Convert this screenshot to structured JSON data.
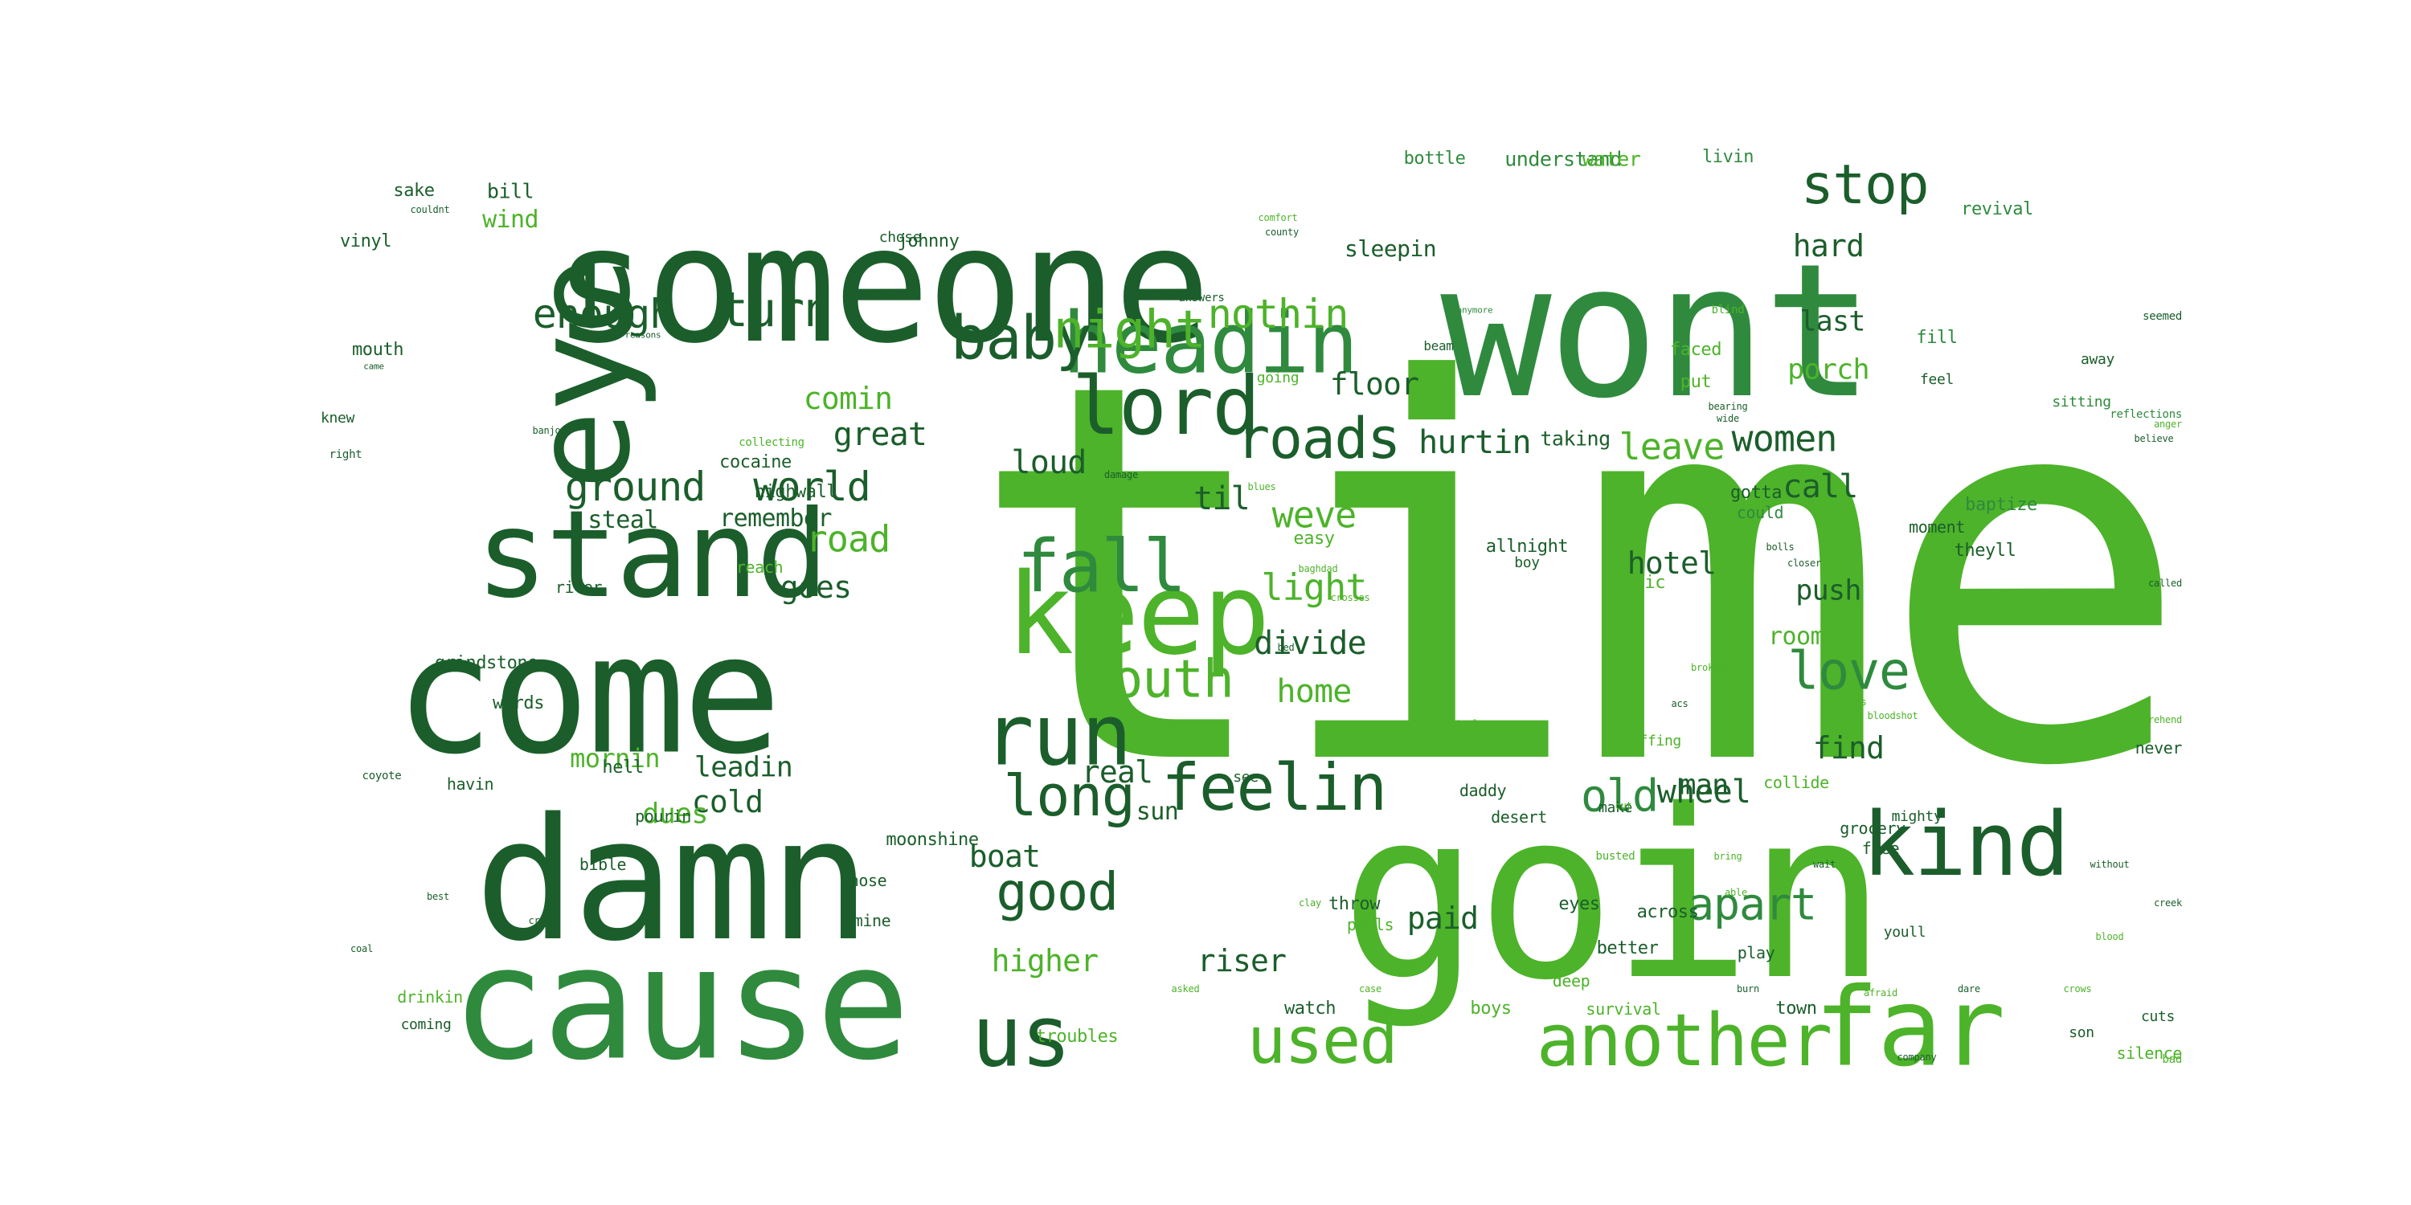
{
  "palette": {
    "dark": "#1b5e2b",
    "mid": "#2f8a3e",
    "light": "#4db32a",
    "pale": "#7fcc4a"
  },
  "words": [
    {
      "t": "time",
      "c": "light"
    },
    {
      "t": "someone",
      "c": "dark"
    },
    {
      "t": "wont",
      "c": "mid"
    },
    {
      "t": "goin",
      "c": "light"
    },
    {
      "t": "eye",
      "c": "dark"
    },
    {
      "t": "come",
      "c": "dark"
    },
    {
      "t": "damn",
      "c": "dark"
    },
    {
      "t": "cause",
      "c": "mid"
    },
    {
      "t": "stand",
      "c": "dark"
    },
    {
      "t": "headin",
      "c": "mid"
    },
    {
      "t": "keep",
      "c": "light"
    },
    {
      "t": "lord",
      "c": "dark"
    },
    {
      "t": "far",
      "c": "light"
    },
    {
      "t": "kind",
      "c": "dark"
    },
    {
      "t": "run",
      "c": "dark"
    },
    {
      "t": "another",
      "c": "light"
    },
    {
      "t": "us",
      "c": "dark"
    },
    {
      "t": "fall",
      "c": "mid"
    },
    {
      "t": "feelin",
      "c": "dark"
    },
    {
      "t": "used",
      "c": "light"
    },
    {
      "t": "roads",
      "c": "dark"
    },
    {
      "t": "baby",
      "c": "dark"
    },
    {
      "t": "night",
      "c": "light"
    },
    {
      "t": "south",
      "c": "light"
    },
    {
      "t": "long",
      "c": "dark"
    },
    {
      "t": "good",
      "c": "dark"
    },
    {
      "t": "love",
      "c": "mid"
    },
    {
      "t": "stop",
      "c": "dark"
    },
    {
      "t": "old",
      "c": "mid"
    },
    {
      "t": "apart",
      "c": "mid"
    },
    {
      "t": "turn",
      "c": "dark"
    },
    {
      "t": "enough",
      "c": "dark"
    },
    {
      "t": "ground",
      "c": "dark"
    },
    {
      "t": "world",
      "c": "dark"
    },
    {
      "t": "nothin",
      "c": "light"
    },
    {
      "t": "women",
      "c": "dark"
    },
    {
      "t": "weve",
      "c": "light"
    },
    {
      "t": "light",
      "c": "light"
    },
    {
      "t": "leave",
      "c": "light"
    },
    {
      "t": "hurtin",
      "c": "dark"
    },
    {
      "t": "wheel",
      "c": "dark"
    },
    {
      "t": "call",
      "c": "dark"
    },
    {
      "t": "divide",
      "c": "dark"
    },
    {
      "t": "home",
      "c": "light"
    },
    {
      "t": "road",
      "c": "light"
    },
    {
      "t": "great",
      "c": "dark"
    },
    {
      "t": "comin",
      "c": "light"
    },
    {
      "t": "floor",
      "c": "dark"
    },
    {
      "t": "loud",
      "c": "dark"
    },
    {
      "t": "til",
      "c": "dark"
    },
    {
      "t": "hotel",
      "c": "dark"
    },
    {
      "t": "porch",
      "c": "light"
    },
    {
      "t": "last",
      "c": "dark"
    },
    {
      "t": "hard",
      "c": "dark"
    },
    {
      "t": "push",
      "c": "dark"
    },
    {
      "t": "find",
      "c": "dark"
    },
    {
      "t": "boat",
      "c": "dark"
    },
    {
      "t": "higher",
      "c": "light"
    },
    {
      "t": "paid",
      "c": "dark"
    },
    {
      "t": "riser",
      "c": "dark"
    },
    {
      "t": "leadin",
      "c": "dark"
    },
    {
      "t": "cold",
      "c": "dark"
    },
    {
      "t": "dues",
      "c": "light"
    },
    {
      "t": "mornin",
      "c": "light"
    },
    {
      "t": "goes",
      "c": "dark"
    },
    {
      "t": "real",
      "c": "dark"
    },
    {
      "t": "man",
      "c": "dark"
    },
    {
      "t": "sun",
      "c": "dark"
    },
    {
      "t": "remember",
      "c": "dark"
    },
    {
      "t": "steal",
      "c": "dark"
    },
    {
      "t": "room",
      "c": "light"
    },
    {
      "t": "sleepin",
      "c": "dark"
    },
    {
      "t": "wind",
      "c": "light"
    },
    {
      "t": "bill",
      "c": "dark"
    },
    {
      "t": "sake",
      "c": "dark"
    },
    {
      "t": "vinyl",
      "c": "dark"
    },
    {
      "t": "johnny",
      "c": "dark"
    },
    {
      "t": "chose",
      "c": "dark"
    },
    {
      "t": "bottle",
      "c": "mid"
    },
    {
      "t": "understand",
      "c": "mid"
    },
    {
      "t": "water",
      "c": "light"
    },
    {
      "t": "livin",
      "c": "mid"
    },
    {
      "t": "revival",
      "c": "mid"
    },
    {
      "t": "mouth",
      "c": "dark"
    },
    {
      "t": "knew",
      "c": "dark"
    },
    {
      "t": "cocaine",
      "c": "dark"
    },
    {
      "t": "highwall",
      "c": "dark"
    },
    {
      "t": "taking",
      "c": "dark"
    },
    {
      "t": "faced",
      "c": "light"
    },
    {
      "t": "put",
      "c": "light"
    },
    {
      "t": "fill",
      "c": "mid"
    },
    {
      "t": "baptize",
      "c": "mid"
    },
    {
      "t": "theyll",
      "c": "dark"
    },
    {
      "t": "gotta",
      "c": "dark"
    },
    {
      "t": "could",
      "c": "mid"
    },
    {
      "t": "allnight",
      "c": "dark"
    },
    {
      "t": "boy",
      "c": "dark"
    },
    {
      "t": "music",
      "c": "light"
    },
    {
      "t": "moment",
      "c": "dark"
    },
    {
      "t": "easy",
      "c": "light"
    },
    {
      "t": "reach",
      "c": "light"
    },
    {
      "t": "river",
      "c": "dark"
    },
    {
      "t": "grindstone",
      "c": "dark"
    },
    {
      "t": "words",
      "c": "dark"
    },
    {
      "t": "hell",
      "c": "dark"
    },
    {
      "t": "havin",
      "c": "dark"
    },
    {
      "t": "pourin",
      "c": "dark"
    },
    {
      "t": "bible",
      "c": "dark"
    },
    {
      "t": "nose",
      "c": "dark"
    },
    {
      "t": "moonshine",
      "c": "dark"
    },
    {
      "t": "mine",
      "c": "dark"
    },
    {
      "t": "throw",
      "c": "dark"
    },
    {
      "t": "pills",
      "c": "light"
    },
    {
      "t": "eyes",
      "c": "dark"
    },
    {
      "t": "across",
      "c": "dark"
    },
    {
      "t": "better",
      "c": "dark"
    },
    {
      "t": "play",
      "c": "dark"
    },
    {
      "t": "deep",
      "c": "light"
    },
    {
      "t": "boys",
      "c": "light"
    },
    {
      "t": "watch",
      "c": "dark"
    },
    {
      "t": "survival",
      "c": "light"
    },
    {
      "t": "town",
      "c": "dark"
    },
    {
      "t": "troubles",
      "c": "light"
    },
    {
      "t": "drinkin",
      "c": "light"
    },
    {
      "t": "coming",
      "c": "dark"
    },
    {
      "t": "silence",
      "c": "light"
    },
    {
      "t": "cuts",
      "c": "dark"
    },
    {
      "t": "son",
      "c": "dark"
    },
    {
      "t": "youll",
      "c": "dark"
    },
    {
      "t": "free",
      "c": "dark"
    },
    {
      "t": "grocery",
      "c": "dark"
    },
    {
      "t": "collide",
      "c": "light"
    },
    {
      "t": "daddy",
      "c": "dark"
    },
    {
      "t": "make",
      "c": "dark"
    },
    {
      "t": "desert",
      "c": "dark"
    },
    {
      "t": "mighty",
      "c": "dark"
    },
    {
      "t": "never",
      "c": "dark"
    },
    {
      "t": "sniffing",
      "c": "light"
    },
    {
      "t": "see",
      "c": "dark"
    },
    {
      "t": "away",
      "c": "dark"
    },
    {
      "t": "sitting",
      "c": "mid"
    },
    {
      "t": "feel",
      "c": "dark"
    },
    {
      "t": "going",
      "c": "light"
    },
    {
      "t": "beam",
      "c": "dark"
    },
    {
      "t": "collecting",
      "c": "light"
    },
    {
      "t": "right",
      "c": "dark"
    },
    {
      "t": "seemed",
      "c": "dark"
    },
    {
      "t": "reflections",
      "c": "mid"
    },
    {
      "t": "anger",
      "c": "light"
    },
    {
      "t": "couldnt",
      "c": "dark"
    },
    {
      "t": "comfort",
      "c": "light"
    },
    {
      "t": "county",
      "c": "dark"
    },
    {
      "t": "answers",
      "c": "dark"
    },
    {
      "t": "reasons",
      "c": "dark"
    },
    {
      "t": "came",
      "c": "dark"
    },
    {
      "t": "anymore",
      "c": "mid"
    },
    {
      "t": "blind",
      "c": "light"
    },
    {
      "t": "bearing",
      "c": "dark"
    },
    {
      "t": "wide",
      "c": "dark"
    },
    {
      "t": "banjo",
      "c": "dark"
    },
    {
      "t": "damage",
      "c": "dark"
    },
    {
      "t": "blues",
      "c": "light"
    },
    {
      "t": "closer",
      "c": "dark"
    },
    {
      "t": "bolls",
      "c": "dark"
    },
    {
      "t": "believe",
      "c": "dark"
    },
    {
      "t": "baghdad",
      "c": "light"
    },
    {
      "t": "bones",
      "c": "light"
    },
    {
      "t": "crosses",
      "c": "light"
    },
    {
      "t": "called",
      "c": "dark"
    },
    {
      "t": "bed",
      "c": "dark"
    },
    {
      "t": "broken",
      "c": "light"
    },
    {
      "t": "comes",
      "c": "light"
    },
    {
      "t": "bloodshot",
      "c": "light"
    },
    {
      "t": "acs",
      "c": "dark"
    },
    {
      "t": "comprehend",
      "c": "light"
    },
    {
      "t": "control",
      "c": "light"
    },
    {
      "t": "coyote",
      "c": "dark"
    },
    {
      "t": "cut",
      "c": "light"
    },
    {
      "t": "early",
      "c": "light"
    },
    {
      "t": "busted",
      "c": "light"
    },
    {
      "t": "bring",
      "c": "light"
    },
    {
      "t": "wait",
      "c": "dark"
    },
    {
      "t": "without",
      "c": "dark"
    },
    {
      "t": "creek",
      "c": "dark"
    },
    {
      "t": "best",
      "c": "dark"
    },
    {
      "t": "crowd",
      "c": "dark"
    },
    {
      "t": "clay",
      "c": "light"
    },
    {
      "t": "able",
      "c": "light"
    },
    {
      "t": "blood",
      "c": "light"
    },
    {
      "t": "coal",
      "c": "dark"
    },
    {
      "t": "asked",
      "c": "light"
    },
    {
      "t": "case",
      "c": "light"
    },
    {
      "t": "burn",
      "c": "dark"
    },
    {
      "t": "afraid",
      "c": "light"
    },
    {
      "t": "dare",
      "c": "dark"
    },
    {
      "t": "crows",
      "c": "light"
    },
    {
      "t": "company",
      "c": "dark"
    },
    {
      "t": "bad",
      "c": "light"
    },
    {
      "t": "clean",
      "c": "light"
    },
    {
      "t": "ever",
      "c": "dark"
    }
  ]
}
